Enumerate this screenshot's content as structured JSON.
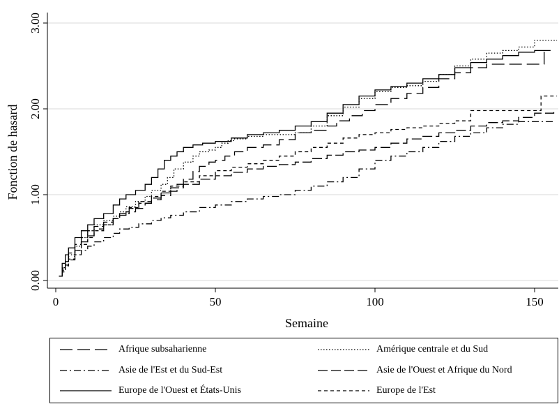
{
  "chart_data": {
    "type": "line",
    "title": "",
    "xlabel": "Semaine",
    "ylabel": "Fonction de hasard",
    "xlim": [
      0,
      157
    ],
    "ylim": [
      -0.05,
      3.12
    ],
    "x_ticks": [
      0,
      50,
      100,
      150
    ],
    "x_tick_labels": [
      "0",
      "50",
      "100",
      "150"
    ],
    "y_ticks": [
      0,
      1,
      2,
      3
    ],
    "y_tick_labels": [
      "0.00",
      "1.00",
      "2.00",
      "3.00"
    ],
    "grid": "horizontal",
    "step": true,
    "legend_position": "bottom",
    "series": [
      {
        "name": "Afrique subsaharienne",
        "dash": "long-dash",
        "x": [
          1,
          2,
          3,
          4,
          6,
          8,
          10,
          12,
          15,
          18,
          20,
          22,
          25,
          28,
          30,
          33,
          36,
          38,
          40,
          43,
          45,
          48,
          50,
          53,
          56,
          60,
          65,
          70,
          75,
          80,
          85,
          88,
          92,
          96,
          100,
          105,
          110,
          115,
          120,
          125,
          130,
          135,
          140,
          145,
          150,
          153
        ],
        "y": [
          0.05,
          0.15,
          0.22,
          0.28,
          0.35,
          0.45,
          0.52,
          0.6,
          0.65,
          0.72,
          0.76,
          0.8,
          0.84,
          0.9,
          0.94,
          0.99,
          1.04,
          1.12,
          1.18,
          1.27,
          1.33,
          1.38,
          1.4,
          1.45,
          1.5,
          1.55,
          1.58,
          1.64,
          1.72,
          1.75,
          1.8,
          1.86,
          1.92,
          1.98,
          2.05,
          2.12,
          2.18,
          2.25,
          2.35,
          2.42,
          2.48,
          2.52,
          2.52,
          2.52,
          2.52,
          2.67
        ]
      },
      {
        "name": "Amérique centrale et du Sud",
        "dash": "dotted",
        "x": [
          1,
          2,
          3,
          4,
          6,
          8,
          10,
          12,
          15,
          18,
          20,
          22,
          25,
          28,
          30,
          33,
          35,
          37,
          40,
          43,
          45,
          48,
          50,
          52,
          54,
          56,
          60,
          65,
          70,
          75,
          80,
          85,
          90,
          95,
          100,
          105,
          110,
          115,
          120,
          125,
          130,
          135,
          140,
          145,
          150,
          157
        ],
        "y": [
          0.05,
          0.14,
          0.22,
          0.3,
          0.4,
          0.5,
          0.58,
          0.65,
          0.7,
          0.75,
          0.8,
          0.86,
          0.92,
          0.98,
          1.05,
          1.12,
          1.2,
          1.3,
          1.38,
          1.45,
          1.5,
          1.52,
          1.55,
          1.6,
          1.63,
          1.65,
          1.68,
          1.7,
          1.7,
          1.72,
          1.8,
          1.92,
          2.02,
          2.12,
          2.2,
          2.25,
          2.27,
          2.32,
          2.4,
          2.5,
          2.58,
          2.65,
          2.68,
          2.72,
          2.8,
          2.8
        ]
      },
      {
        "name": "Asie de l'Est et du Sud-Est",
        "dash": "dash-dot",
        "x": [
          1,
          2,
          3,
          4,
          6,
          8,
          10,
          12,
          15,
          18,
          20,
          23,
          26,
          30,
          33,
          36,
          40,
          45,
          50,
          55,
          60,
          65,
          70,
          75,
          80,
          85,
          90,
          95,
          100,
          105,
          110,
          115,
          120,
          125,
          130,
          135,
          140,
          145,
          150,
          156
        ],
        "y": [
          0.05,
          0.12,
          0.18,
          0.24,
          0.3,
          0.35,
          0.4,
          0.45,
          0.5,
          0.55,
          0.6,
          0.62,
          0.66,
          0.7,
          0.73,
          0.76,
          0.8,
          0.85,
          0.88,
          0.92,
          0.95,
          0.98,
          1.0,
          1.05,
          1.1,
          1.15,
          1.2,
          1.3,
          1.4,
          1.45,
          1.5,
          1.55,
          1.62,
          1.68,
          1.72,
          1.78,
          1.82,
          1.85,
          1.85,
          1.85
        ]
      },
      {
        "name": "Asie de l'Ouest et Afrique du Nord",
        "dash": "dash",
        "x": [
          1,
          2,
          3,
          4,
          6,
          8,
          10,
          12,
          15,
          18,
          20,
          23,
          26,
          30,
          33,
          36,
          40,
          45,
          50,
          55,
          60,
          65,
          70,
          75,
          80,
          85,
          90,
          95,
          100,
          105,
          110,
          115,
          120,
          125,
          130,
          135,
          140,
          145,
          150,
          156
        ],
        "y": [
          0.05,
          0.15,
          0.25,
          0.32,
          0.42,
          0.5,
          0.58,
          0.63,
          0.68,
          0.72,
          0.78,
          0.84,
          0.9,
          0.96,
          1.02,
          1.08,
          1.12,
          1.18,
          1.22,
          1.26,
          1.3,
          1.33,
          1.35,
          1.38,
          1.42,
          1.46,
          1.5,
          1.52,
          1.55,
          1.6,
          1.65,
          1.68,
          1.72,
          1.75,
          1.8,
          1.84,
          1.86,
          1.9,
          1.95,
          1.98
        ]
      },
      {
        "name": "Europe de l'Ouest et États-Unis",
        "dash": "solid",
        "x": [
          1,
          2,
          3,
          4,
          6,
          8,
          10,
          12,
          15,
          18,
          20,
          22,
          25,
          28,
          30,
          32,
          34,
          36,
          38,
          40,
          43,
          46,
          50,
          55,
          60,
          65,
          70,
          75,
          80,
          85,
          90,
          95,
          100,
          105,
          110,
          115,
          120,
          125,
          130,
          135,
          140,
          145,
          150,
          155
        ],
        "y": [
          0.05,
          0.2,
          0.3,
          0.38,
          0.5,
          0.58,
          0.65,
          0.72,
          0.78,
          0.88,
          0.95,
          1.0,
          1.05,
          1.12,
          1.2,
          1.3,
          1.4,
          1.45,
          1.5,
          1.55,
          1.58,
          1.6,
          1.62,
          1.66,
          1.7,
          1.72,
          1.75,
          1.8,
          1.85,
          1.95,
          2.05,
          2.15,
          2.22,
          2.26,
          2.3,
          2.35,
          2.4,
          2.48,
          2.54,
          2.58,
          2.62,
          2.66,
          2.68,
          2.68
        ]
      },
      {
        "name": "Europe de l'Est",
        "dash": "short-dash",
        "x": [
          1,
          2,
          3,
          4,
          6,
          8,
          10,
          12,
          15,
          18,
          20,
          23,
          26,
          30,
          33,
          36,
          40,
          45,
          50,
          55,
          60,
          65,
          70,
          75,
          80,
          85,
          90,
          95,
          100,
          105,
          110,
          115,
          120,
          125,
          130,
          135,
          140,
          145,
          150,
          152,
          157
        ],
        "y": [
          0.05,
          0.1,
          0.17,
          0.25,
          0.35,
          0.42,
          0.5,
          0.58,
          0.65,
          0.72,
          0.78,
          0.85,
          0.92,
          0.98,
          1.04,
          1.1,
          1.15,
          1.22,
          1.28,
          1.32,
          1.36,
          1.4,
          1.45,
          1.5,
          1.55,
          1.6,
          1.66,
          1.7,
          1.72,
          1.76,
          1.78,
          1.8,
          1.83,
          1.86,
          1.98,
          1.98,
          1.98,
          1.98,
          1.98,
          2.15,
          2.15
        ]
      }
    ]
  }
}
